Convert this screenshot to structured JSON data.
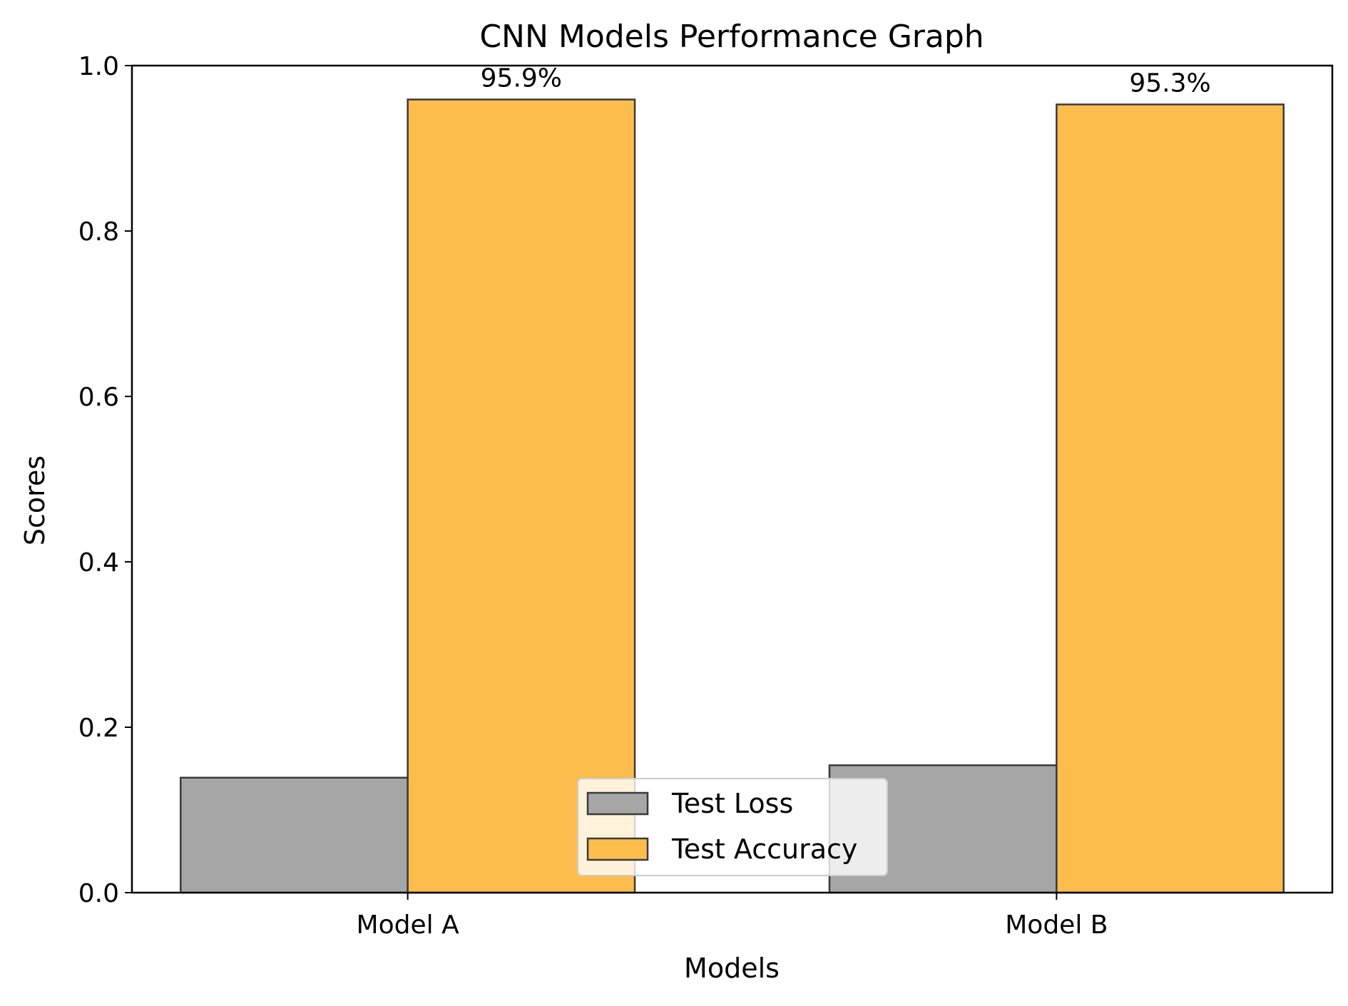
{
  "chart_data": {
    "type": "bar",
    "title": "CNN Models Performance Graph",
    "xlabel": "Models",
    "ylabel": "Scores",
    "categories": [
      "Model A",
      "Model B"
    ],
    "series": [
      {
        "name": "Test Loss",
        "values": [
          0.139,
          0.154
        ],
        "color": "#a6a6a6",
        "labels": [
          "",
          ""
        ]
      },
      {
        "name": "Test Accuracy",
        "values": [
          0.959,
          0.953
        ],
        "color": "#fdbd4d",
        "labels": [
          "95.9%",
          "95.3%"
        ]
      }
    ],
    "ylim": [
      0,
      1.0
    ],
    "yticks": [
      0.0,
      0.2,
      0.4,
      0.6,
      0.8,
      1.0
    ],
    "ytick_labels": [
      "0.0",
      "0.2",
      "0.4",
      "0.6",
      "0.8",
      "1.0"
    ],
    "grid": false,
    "legend_position": "lower-center"
  }
}
